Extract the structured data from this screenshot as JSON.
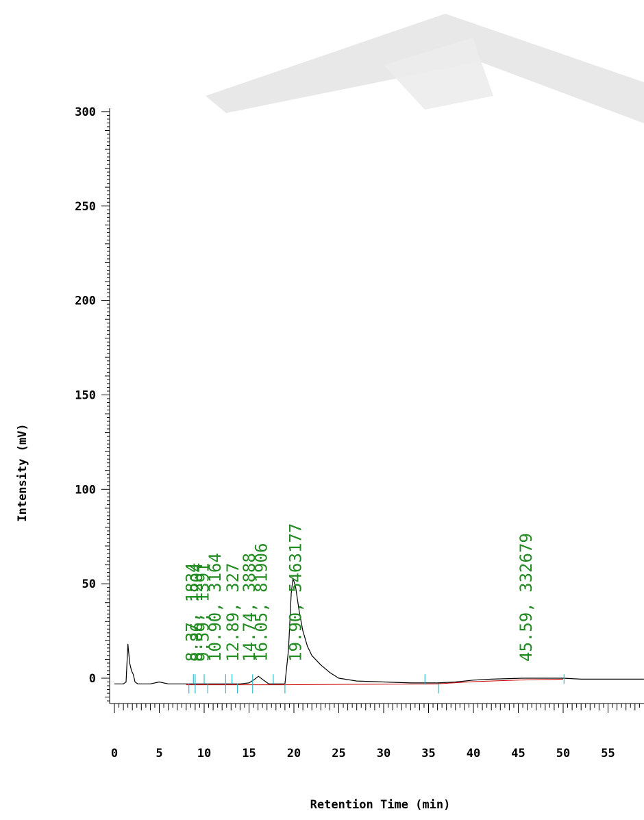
{
  "chart_data": {
    "type": "line",
    "title": "",
    "xlabel": "Retention Time (min)",
    "ylabel": "Intensity (mV)",
    "xlim": [
      0,
      59
    ],
    "ylim": [
      -20,
      310
    ],
    "x_ticks": [
      0,
      5,
      10,
      15,
      20,
      25,
      30,
      35,
      40,
      45,
      50,
      55
    ],
    "y_ticks": [
      0,
      50,
      100,
      150,
      200,
      250,
      300
    ],
    "grid": false,
    "colors": {
      "trace": "#000000",
      "baseline": "#cc0000",
      "peak_labels": "#228B22",
      "integration_marks": "#33bbcc"
    },
    "trace": {
      "x": [
        0,
        1.0,
        1.3,
        1.5,
        1.7,
        1.9,
        2.1,
        2.3,
        2.6,
        3.0,
        4.0,
        5.0,
        6.0,
        8.0,
        10.0,
        12.0,
        14.0,
        15.0,
        15.5,
        16.05,
        16.6,
        17.2,
        18.0,
        19.0,
        19.4,
        19.7,
        19.9,
        20.2,
        20.6,
        21.0,
        21.5,
        22.0,
        23.0,
        24.0,
        25.0,
        27.0,
        30.0,
        33.0,
        36.0,
        38.0,
        40.0,
        42.0,
        45.59,
        48.0,
        50.0,
        52.0,
        55.0,
        59.0
      ],
      "y": [
        -3,
        -3,
        -2,
        18,
        8,
        4,
        2,
        -2,
        -3,
        -3,
        -3,
        -2,
        -3,
        -3,
        -3,
        -3,
        -3,
        -2.5,
        -1,
        1,
        -1,
        -3,
        -3,
        -3,
        15,
        45,
        53,
        48,
        35,
        25,
        17,
        12,
        7,
        3,
        0,
        -1.5,
        -2,
        -2.5,
        -2.5,
        -2,
        -1,
        -0.5,
        0,
        0,
        0,
        -0.5,
        -0.5,
        -0.5
      ]
    },
    "baseline": {
      "x": [
        8.0,
        19.0,
        36.0,
        40.0,
        45.0,
        50.0
      ],
      "y": [
        -3.5,
        -3.5,
        -3.0,
        -1.8,
        -1.0,
        -0.5
      ]
    },
    "integration_marks": [
      {
        "x": 8.3,
        "side": "below"
      },
      {
        "x": 8.8,
        "side": "above"
      },
      {
        "x": 9.0,
        "side": "both"
      },
      {
        "x": 10.0,
        "side": "above"
      },
      {
        "x": 10.4,
        "side": "below"
      },
      {
        "x": 12.4,
        "side": "both"
      },
      {
        "x": 13.1,
        "side": "above"
      },
      {
        "x": 13.7,
        "side": "below"
      },
      {
        "x": 15.4,
        "side": "both"
      },
      {
        "x": 17.7,
        "side": "above"
      },
      {
        "x": 19.0,
        "side": "below"
      },
      {
        "x": 34.6,
        "side": "above"
      },
      {
        "x": 36.1,
        "side": "below"
      },
      {
        "x": 50.1,
        "side": "above"
      }
    ],
    "peaks": [
      {
        "x": 8.37,
        "label": "8.37, 1834"
      },
      {
        "x": 8.86,
        "label": "8.86, 1204"
      },
      {
        "x": 9.59,
        "label": "9.59, 1391"
      },
      {
        "x": 10.9,
        "label": "10.90, 3164"
      },
      {
        "x": 12.89,
        "label": "12.89, 327"
      },
      {
        "x": 14.74,
        "label": "14.74, 3888"
      },
      {
        "x": 16.05,
        "label": "16.05, 81906"
      },
      {
        "x": 19.9,
        "label": "19.90, 5463177"
      },
      {
        "x": 45.59,
        "label": "45.59, 332679"
      }
    ]
  }
}
